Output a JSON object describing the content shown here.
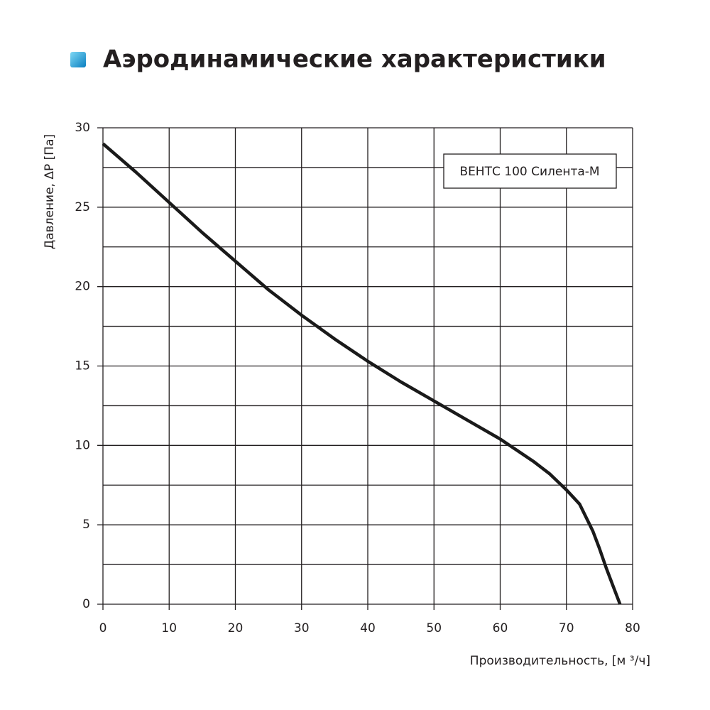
{
  "chart_data": {
    "type": "line",
    "title": "Аэродинамические характеристики",
    "xlabel": "Производительность, [м ³/ч]",
    "ylabel": "Давление, ΔP [Па]",
    "x": [
      0,
      5,
      10,
      15,
      20,
      25,
      30,
      35,
      40,
      45,
      50,
      55,
      60,
      65,
      67.5,
      70,
      72,
      74,
      75,
      76,
      77,
      78.1
    ],
    "series": [
      {
        "name": "ВЕНТС 100 Силента-М",
        "color": "#1a1a1a",
        "values": [
          29,
          27.2,
          25.3,
          23.4,
          21.6,
          19.8,
          18.2,
          16.7,
          15.3,
          14.0,
          12.8,
          11.6,
          10.4,
          9.0,
          8.2,
          7.2,
          6.3,
          4.6,
          3.5,
          2.3,
          1.2,
          0
        ]
      }
    ],
    "xlim": [
      0,
      80
    ],
    "ylim": [
      0,
      30
    ],
    "xticks": [
      0,
      10,
      20,
      30,
      40,
      50,
      60,
      70,
      80
    ],
    "yticks": [
      0,
      5,
      10,
      15,
      20,
      25,
      30
    ],
    "yminor_ticks": [
      2.5,
      7.5,
      12.5,
      17.5,
      22.5,
      27.5
    ],
    "grid": true,
    "legend": "top-right"
  }
}
